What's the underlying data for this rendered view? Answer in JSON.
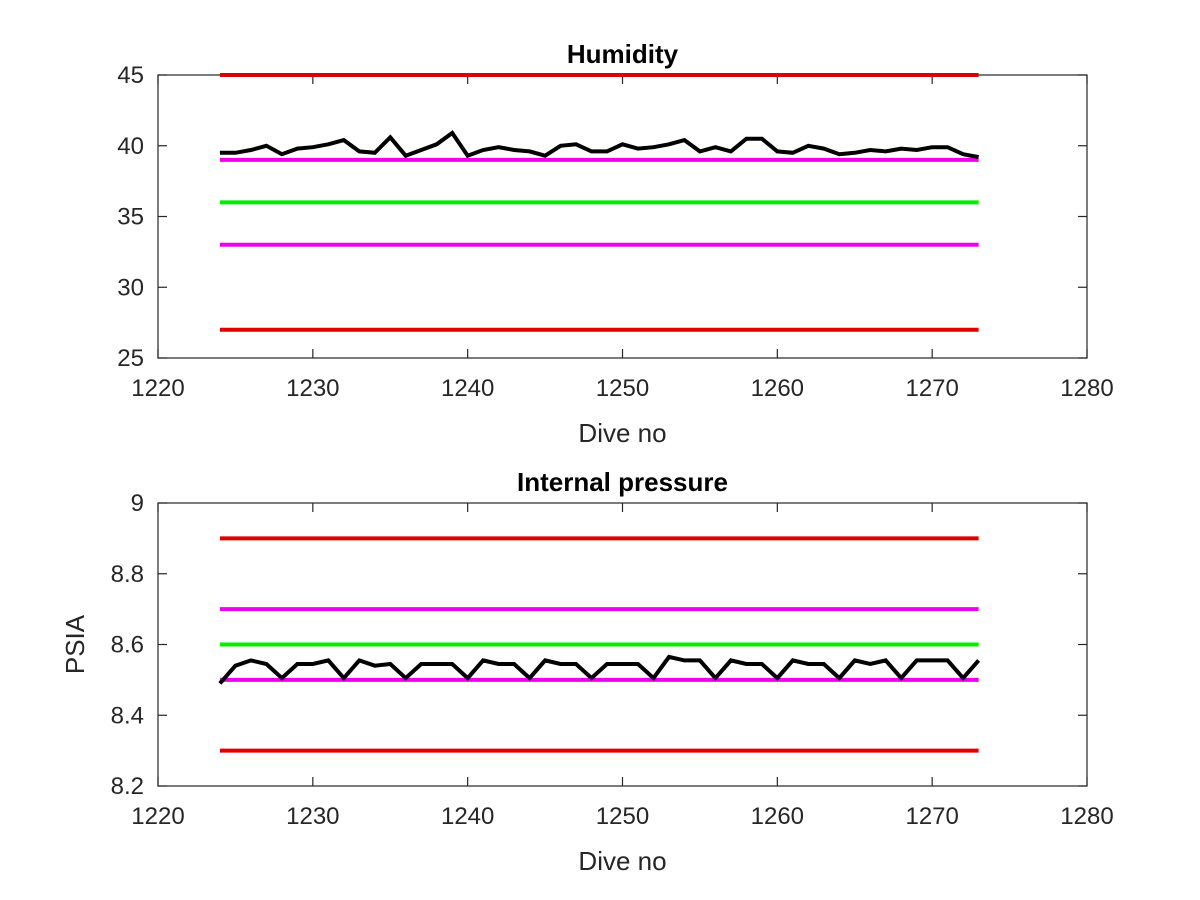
{
  "chart_data": [
    {
      "type": "line",
      "title": "Humidity",
      "xlabel": "Dive no",
      "ylabel": "",
      "xlim": [
        1220,
        1280
      ],
      "ylim": [
        25,
        45
      ],
      "xticks": [
        "1220",
        "1230",
        "1240",
        "1250",
        "1260",
        "1270",
        "1280"
      ],
      "yticks": [
        "25",
        "30",
        "35",
        "40",
        "45"
      ],
      "grid": false,
      "limit_lines": [
        {
          "y": 45,
          "x": [
            1224,
            1273
          ],
          "color": "#dd0000"
        },
        {
          "y": 39,
          "x": [
            1224,
            1273
          ],
          "color": "#ee00ee"
        },
        {
          "y": 36,
          "x": [
            1224,
            1273
          ],
          "color": "#00ee00"
        },
        {
          "y": 33,
          "x": [
            1224,
            1273
          ],
          "color": "#ee00ee"
        },
        {
          "y": 27,
          "x": [
            1224,
            1273
          ],
          "color": "#dd0000"
        }
      ],
      "series": [
        {
          "color": "#000000",
          "x": [
            1224,
            1225,
            1226,
            1227,
            1228,
            1229,
            1230,
            1231,
            1232,
            1233,
            1234,
            1235,
            1236,
            1237,
            1238,
            1239,
            1240,
            1241,
            1242,
            1243,
            1244,
            1245,
            1246,
            1247,
            1248,
            1249,
            1250,
            1251,
            1252,
            1253,
            1254,
            1255,
            1256,
            1257,
            1258,
            1259,
            1260,
            1261,
            1262,
            1263,
            1264,
            1265,
            1266,
            1267,
            1268,
            1269,
            1270,
            1271,
            1272,
            1273
          ],
          "values": [
            39.5,
            39.5,
            39.7,
            40.0,
            39.4,
            39.8,
            39.9,
            40.1,
            40.4,
            39.6,
            39.5,
            40.6,
            39.3,
            39.7,
            40.1,
            40.9,
            39.3,
            39.7,
            39.9,
            39.7,
            39.6,
            39.3,
            40.0,
            40.1,
            39.6,
            39.6,
            40.1,
            39.8,
            39.9,
            40.1,
            40.4,
            39.6,
            39.9,
            39.6,
            40.5,
            40.5,
            39.6,
            39.5,
            40.0,
            39.8,
            39.4,
            39.5,
            39.7,
            39.6,
            39.8,
            39.7,
            39.9,
            39.9,
            39.4,
            39.2
          ]
        }
      ]
    },
    {
      "type": "line",
      "title": "Internal pressure",
      "xlabel": "Dive no",
      "ylabel": "PSIA",
      "xlim": [
        1220,
        1280
      ],
      "ylim": [
        8.2,
        9.0
      ],
      "xticks": [
        "1220",
        "1230",
        "1240",
        "1250",
        "1260",
        "1270",
        "1280"
      ],
      "yticks": [
        "8.2",
        "8.4",
        "8.6",
        "8.8",
        "9"
      ],
      "grid": false,
      "limit_lines": [
        {
          "y": 8.9,
          "x": [
            1224,
            1273
          ],
          "color": "#dd0000"
        },
        {
          "y": 8.7,
          "x": [
            1224,
            1273
          ],
          "color": "#ee00ee"
        },
        {
          "y": 8.6,
          "x": [
            1224,
            1273
          ],
          "color": "#00ee00"
        },
        {
          "y": 8.5,
          "x": [
            1224,
            1273
          ],
          "color": "#ee00ee"
        },
        {
          "y": 8.3,
          "x": [
            1224,
            1273
          ],
          "color": "#dd0000"
        }
      ],
      "series": [
        {
          "color": "#000000",
          "x": [
            1224,
            1225,
            1226,
            1227,
            1228,
            1229,
            1230,
            1231,
            1232,
            1233,
            1234,
            1235,
            1236,
            1237,
            1238,
            1239,
            1240,
            1241,
            1242,
            1243,
            1244,
            1245,
            1246,
            1247,
            1248,
            1249,
            1250,
            1251,
            1252,
            1253,
            1254,
            1255,
            1256,
            1257,
            1258,
            1259,
            1260,
            1261,
            1262,
            1263,
            1264,
            1265,
            1266,
            1267,
            1268,
            1269,
            1270,
            1271,
            1272,
            1273
          ],
          "values": [
            8.49,
            8.54,
            8.555,
            8.545,
            8.505,
            8.545,
            8.545,
            8.555,
            8.505,
            8.555,
            8.54,
            8.545,
            8.505,
            8.545,
            8.545,
            8.545,
            8.505,
            8.555,
            8.545,
            8.545,
            8.505,
            8.555,
            8.545,
            8.545,
            8.505,
            8.545,
            8.545,
            8.545,
            8.505,
            8.565,
            8.555,
            8.555,
            8.505,
            8.555,
            8.545,
            8.545,
            8.505,
            8.555,
            8.545,
            8.545,
            8.505,
            8.555,
            8.545,
            8.555,
            8.505,
            8.555,
            8.555,
            8.555,
            8.505,
            8.555
          ]
        }
      ]
    }
  ]
}
